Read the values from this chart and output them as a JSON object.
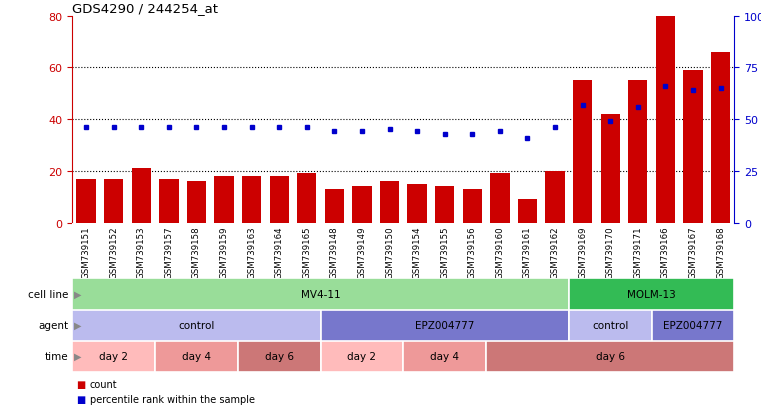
{
  "title": "GDS4290 / 244254_at",
  "samples": [
    "GSM739151",
    "GSM739152",
    "GSM739153",
    "GSM739157",
    "GSM739158",
    "GSM739159",
    "GSM739163",
    "GSM739164",
    "GSM739165",
    "GSM739148",
    "GSM739149",
    "GSM739150",
    "GSM739154",
    "GSM739155",
    "GSM739156",
    "GSM739160",
    "GSM739161",
    "GSM739162",
    "GSM739169",
    "GSM739170",
    "GSM739171",
    "GSM739166",
    "GSM739167",
    "GSM739168"
  ],
  "counts": [
    17,
    17,
    21,
    17,
    16,
    18,
    18,
    18,
    19,
    13,
    14,
    16,
    15,
    14,
    13,
    19,
    9,
    20,
    55,
    42,
    55,
    80,
    59,
    66
  ],
  "percentiles": [
    46,
    46,
    46,
    46,
    46,
    46,
    46,
    46,
    46,
    44,
    44,
    45,
    44,
    43,
    43,
    44,
    41,
    46,
    57,
    49,
    56,
    66,
    64,
    65
  ],
  "bar_color": "#CC0000",
  "dot_color": "#0000CC",
  "ylim_left": [
    0,
    80
  ],
  "ylim_right": [
    0,
    100
  ],
  "yticks_left": [
    0,
    20,
    40,
    60,
    80
  ],
  "yticks_right": [
    0,
    25,
    50,
    75,
    100
  ],
  "ytick_labels_right": [
    "0",
    "25",
    "50",
    "75",
    "100%"
  ],
  "grid_lines": [
    20,
    40,
    60
  ],
  "cell_line_groups": [
    {
      "label": "MV4-11",
      "start": 0,
      "end": 18,
      "color": "#99DD99"
    },
    {
      "label": "MOLM-13",
      "start": 18,
      "end": 24,
      "color": "#33BB55"
    }
  ],
  "agent_groups": [
    {
      "label": "control",
      "start": 0,
      "end": 9,
      "color": "#BBBBEE"
    },
    {
      "label": "EPZ004777",
      "start": 9,
      "end": 18,
      "color": "#7777CC"
    },
    {
      "label": "control",
      "start": 18,
      "end": 21,
      "color": "#BBBBEE"
    },
    {
      "label": "EPZ004777",
      "start": 21,
      "end": 24,
      "color": "#7777CC"
    }
  ],
  "time_groups": [
    {
      "label": "day 2",
      "start": 0,
      "end": 3,
      "color": "#FFBBBB"
    },
    {
      "label": "day 4",
      "start": 3,
      "end": 6,
      "color": "#EE9999"
    },
    {
      "label": "day 6",
      "start": 6,
      "end": 9,
      "color": "#CC7777"
    },
    {
      "label": "day 2",
      "start": 9,
      "end": 12,
      "color": "#FFBBBB"
    },
    {
      "label": "day 4",
      "start": 12,
      "end": 15,
      "color": "#EE9999"
    },
    {
      "label": "day 6",
      "start": 15,
      "end": 24,
      "color": "#CC7777"
    }
  ],
  "legend_items": [
    {
      "label": "count",
      "color": "#CC0000"
    },
    {
      "label": "percentile rank within the sample",
      "color": "#0000CC"
    }
  ],
  "background_color": "#FFFFFF",
  "xticklabel_bg": "#DDDDDD",
  "left_label_color": "#888888",
  "row_labels": [
    "cell line",
    "agent",
    "time"
  ]
}
